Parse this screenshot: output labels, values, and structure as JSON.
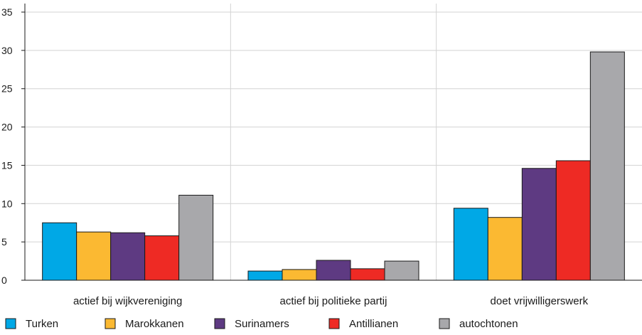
{
  "chart_data": {
    "type": "bar",
    "categories": [
      "actief bij wijkvereniging",
      "actief bij politieke partij",
      "doet vrijwilligerswerk"
    ],
    "series": [
      {
        "name": "Turken",
        "values": [
          7.5,
          1.2,
          9.4
        ],
        "color": "#00a8e6"
      },
      {
        "name": "Marokkanen",
        "values": [
          6.3,
          1.4,
          8.2
        ],
        "color": "#fbb932"
      },
      {
        "name": "Surinamers",
        "values": [
          6.2,
          2.6,
          14.6
        ],
        "color": "#5e3a82"
      },
      {
        "name": "Antillianen",
        "values": [
          5.8,
          1.5,
          15.6
        ],
        "color": "#ee2a24"
      },
      {
        "name": "autochtonen",
        "values": [
          11.1,
          2.5,
          29.8
        ],
        "color": "#a8a8ab"
      }
    ],
    "ylim": [
      0,
      35
    ],
    "yticks": [
      0,
      5,
      10,
      15,
      20,
      25,
      30,
      35
    ],
    "grid": true,
    "legend_position": "bottom-left"
  }
}
